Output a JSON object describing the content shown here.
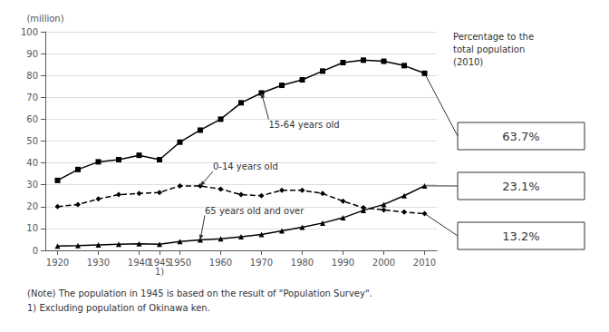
{
  "chart_data": {
    "type": "line",
    "x": [
      1920,
      1925,
      1930,
      1935,
      1940,
      1945,
      1950,
      1955,
      1960,
      1965,
      1970,
      1975,
      1980,
      1985,
      1990,
      1995,
      2000,
      2005,
      2010
    ],
    "series": [
      {
        "values": [
          32.0,
          37.0,
          40.5,
          41.5,
          43.5,
          41.5,
          49.5,
          55.0,
          60.0,
          67.5,
          72.0,
          75.5,
          78.0,
          82.0,
          85.9,
          87.0,
          86.5,
          84.5,
          81.0
        ],
        "marker": "square",
        "line_style": "solid",
        "share_2010": {
          "value": 63.7,
          "label": "63.7%"
        }
      },
      {
        "values": [
          20.0,
          21.0,
          23.5,
          25.5,
          26.0,
          26.5,
          29.5,
          29.5,
          28.0,
          25.5,
          25.0,
          27.5,
          27.5,
          26.0,
          22.5,
          19.5,
          18.5,
          17.5,
          16.8
        ],
        "marker": "diamond",
        "line_style": "dashed",
        "share_2010": {
          "value": 13.2,
          "label": "13.2%"
        }
      },
      {
        "values": [
          2.0,
          2.2,
          2.5,
          2.8,
          3.0,
          2.8,
          4.0,
          4.8,
          5.3,
          6.2,
          7.3,
          8.9,
          10.6,
          12.5,
          14.9,
          18.3,
          21.0,
          25.0,
          29.5
        ],
        "marker": "triangle",
        "line_style": "solid",
        "share_2010": {
          "value": 23.1,
          "label": "23.1%"
        }
      }
    ],
    "color": "#000000",
    "xlim": [
      1917,
      2013
    ],
    "xticks": [
      1920,
      1930,
      1940,
      1945,
      1950,
      1960,
      1970,
      1980,
      1990,
      2000,
      2010
    ],
    "ylim": [
      0,
      100
    ],
    "yticks": [
      0,
      10,
      20,
      30,
      40,
      50,
      60,
      70,
      80,
      90,
      100
    ],
    "grid": true,
    "ylabel": "(million)",
    "annotations": [
      {
        "text": "15-64 years old",
        "x": 1970,
        "y": 72.0
      },
      {
        "text": "0-14 years old",
        "x": 1955,
        "y": 29.5
      },
      {
        "text": "65 years old and over",
        "x": 1955,
        "y": 4.8
      }
    ],
    "tick_annotations": [
      {
        "text": "1)",
        "x": 1945
      }
    ],
    "share_title": [
      "Percentage to the",
      "total population",
      "(2010)"
    ],
    "notes": [
      "(Note) The population in 1945 is based on the result of \"Population Survey\".",
      "1) Excluding population of Okinawa ken."
    ]
  }
}
